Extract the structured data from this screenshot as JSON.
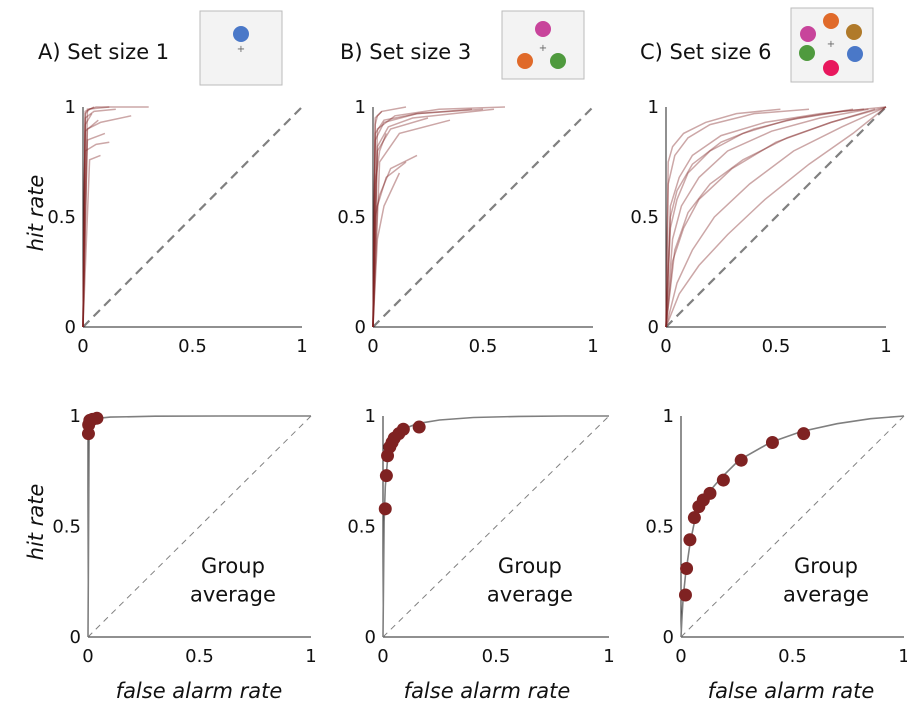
{
  "panels": [
    {
      "label": "A) Set size 1",
      "icon_stimuli": [
        {
          "color": "#4a78c8"
        }
      ]
    },
    {
      "label": "B) Set size 3",
      "icon_stimuli": [
        {
          "color": "#c8449b"
        },
        {
          "color": "#e06a2a"
        },
        {
          "color": "#4f9a3e"
        }
      ]
    },
    {
      "label": "C) Set size 6",
      "icon_stimuli": [
        {
          "color": "#e06a2a"
        },
        {
          "color": "#c8449b"
        },
        {
          "color": "#b07a2a"
        },
        {
          "color": "#4f9a3e"
        },
        {
          "color": "#4a78c8"
        },
        {
          "color": "#e8175d"
        }
      ]
    }
  ],
  "axis_labels": {
    "x": "false alarm rate",
    "y": "hit rate"
  },
  "annotation": {
    "line1": "Group",
    "line2": "average"
  },
  "colors": {
    "data": "#7f2222",
    "curve": "#7f7f7f",
    "chance": "#808080",
    "axis": "#222222"
  },
  "chart_data": [
    {
      "type": "line",
      "title": "A) Set size 1",
      "row": "individual ROC curves",
      "xlabel": "",
      "ylabel": "hit rate",
      "xlim": [
        0,
        1
      ],
      "ylim": [
        0,
        1
      ],
      "xticks": [
        "0",
        "0.5",
        "1"
      ],
      "yticks": [
        "0",
        "0.5",
        "1"
      ],
      "reference_line": "chance diagonal (dashed)",
      "series": [
        {
          "x": [
            0,
            0.01,
            0.03,
            0.06,
            0.3
          ],
          "y": [
            0,
            0.98,
            0.99,
            1.0,
            1.0
          ]
        },
        {
          "x": [
            0,
            0.01,
            0.05,
            0.15
          ],
          "y": [
            0,
            0.95,
            0.98,
            0.99
          ]
        },
        {
          "x": [
            0,
            0.02,
            0.08,
            0.22
          ],
          "y": [
            0,
            0.9,
            0.93,
            0.96
          ]
        },
        {
          "x": [
            0,
            0.01,
            0.04
          ],
          "y": [
            0,
            0.92,
            0.97
          ]
        },
        {
          "x": [
            0,
            0.02,
            0.1
          ],
          "y": [
            0,
            0.85,
            0.88
          ]
        },
        {
          "x": [
            0,
            0.01,
            0.06,
            0.12
          ],
          "y": [
            0,
            0.8,
            0.83,
            0.84
          ]
        },
        {
          "x": [
            0,
            0.03,
            0.08
          ],
          "y": [
            0,
            0.76,
            0.78
          ]
        },
        {
          "x": [
            0,
            0.01,
            0.03,
            0.05
          ],
          "y": [
            0,
            0.97,
            0.99,
            1.0
          ]
        },
        {
          "x": [
            0,
            0.02,
            0.12
          ],
          "y": [
            0,
            0.99,
            1.0
          ]
        },
        {
          "x": [
            0,
            0.01,
            0.07
          ],
          "y": [
            0,
            0.89,
            0.94
          ]
        }
      ]
    },
    {
      "type": "line",
      "title": "B) Set size 3",
      "row": "individual ROC curves",
      "xlabel": "",
      "ylabel": "",
      "xlim": [
        0,
        1
      ],
      "ylim": [
        0,
        1
      ],
      "xticks": [
        "0",
        "0.5",
        "1"
      ],
      "yticks": [
        "0",
        "0.5",
        "1"
      ],
      "reference_line": "chance diagonal (dashed)",
      "series": [
        {
          "x": [
            0,
            0.02,
            0.1,
            0.3,
            0.6
          ],
          "y": [
            0,
            0.9,
            0.96,
            0.99,
            1.0
          ]
        },
        {
          "x": [
            0,
            0.01,
            0.05,
            0.2,
            0.5
          ],
          "y": [
            0,
            0.85,
            0.93,
            0.97,
            0.99
          ]
        },
        {
          "x": [
            0,
            0.02,
            0.08,
            0.25
          ],
          "y": [
            0,
            0.8,
            0.9,
            0.95
          ]
        },
        {
          "x": [
            0,
            0.01,
            0.04,
            0.15
          ],
          "y": [
            0,
            0.95,
            0.98,
            1.0
          ]
        },
        {
          "x": [
            0,
            0.01,
            0.03,
            0.08,
            0.2
          ],
          "y": [
            0,
            0.5,
            0.6,
            0.72,
            0.78
          ]
        },
        {
          "x": [
            0,
            0.02,
            0.06,
            0.15
          ],
          "y": [
            0,
            0.55,
            0.68,
            0.75
          ]
        },
        {
          "x": [
            0,
            0.02,
            0.05,
            0.12
          ],
          "y": [
            0,
            0.4,
            0.55,
            0.7
          ]
        },
        {
          "x": [
            0,
            0.01,
            0.03,
            0.06
          ],
          "y": [
            0,
            0.65,
            0.8,
            0.88
          ]
        },
        {
          "x": [
            0,
            0.01,
            0.05,
            0.2,
            0.45
          ],
          "y": [
            0,
            0.88,
            0.94,
            0.97,
            0.99
          ]
        },
        {
          "x": [
            0,
            0.03,
            0.12,
            0.35
          ],
          "y": [
            0,
            0.75,
            0.88,
            0.94
          ]
        },
        {
          "x": [
            0,
            0.01,
            0.02,
            0.04
          ],
          "y": [
            0,
            0.92,
            0.96,
            0.98
          ]
        },
        {
          "x": [
            0,
            0.02,
            0.07,
            0.18,
            0.55
          ],
          "y": [
            0,
            0.82,
            0.91,
            0.95,
            0.99
          ]
        }
      ]
    },
    {
      "type": "line",
      "title": "C) Set size 6",
      "row": "individual ROC curves",
      "xlabel": "",
      "ylabel": "",
      "xlim": [
        0,
        1
      ],
      "ylim": [
        0,
        1
      ],
      "xticks": [
        "0",
        "0.5",
        "1"
      ],
      "yticks": [
        "0",
        "0.5",
        "1"
      ],
      "reference_line": "chance diagonal (dashed)",
      "series": [
        {
          "x": [
            0,
            0.02,
            0.05,
            0.1,
            0.2,
            0.35,
            0.55,
            0.8,
            1.0
          ],
          "y": [
            0,
            0.45,
            0.58,
            0.7,
            0.8,
            0.88,
            0.94,
            0.98,
            1.0
          ]
        },
        {
          "x": [
            0,
            0.03,
            0.08,
            0.15,
            0.3,
            0.5,
            0.75,
            1.0
          ],
          "y": [
            0,
            0.3,
            0.45,
            0.58,
            0.72,
            0.84,
            0.93,
            1.0
          ]
        },
        {
          "x": [
            0,
            0.02,
            0.06,
            0.12,
            0.25,
            0.45,
            0.7,
            0.9
          ],
          "y": [
            0,
            0.55,
            0.68,
            0.78,
            0.87,
            0.93,
            0.97,
            0.99
          ]
        },
        {
          "x": [
            0,
            0.01,
            0.04,
            0.1,
            0.2,
            0.4,
            0.65
          ],
          "y": [
            0,
            0.65,
            0.78,
            0.86,
            0.92,
            0.97,
            0.99
          ]
        },
        {
          "x": [
            0,
            0.05,
            0.12,
            0.22,
            0.38,
            0.58,
            0.8,
            1.0
          ],
          "y": [
            0,
            0.2,
            0.35,
            0.5,
            0.65,
            0.8,
            0.91,
            1.0
          ]
        },
        {
          "x": [
            0,
            0.04,
            0.1,
            0.2,
            0.35,
            0.55,
            0.75,
            0.95
          ],
          "y": [
            0,
            0.35,
            0.52,
            0.65,
            0.76,
            0.86,
            0.93,
            0.99
          ]
        },
        {
          "x": [
            0,
            0.02,
            0.05,
            0.12,
            0.25,
            0.4,
            0.6,
            0.85
          ],
          "y": [
            0,
            0.5,
            0.62,
            0.74,
            0.84,
            0.9,
            0.95,
            0.99
          ]
        },
        {
          "x": [
            0,
            0.06,
            0.15,
            0.28,
            0.45,
            0.65,
            0.85,
            1.0
          ],
          "y": [
            0,
            0.15,
            0.28,
            0.42,
            0.58,
            0.74,
            0.88,
            1.0
          ]
        },
        {
          "x": [
            0,
            0.01,
            0.03,
            0.08,
            0.18,
            0.32,
            0.52
          ],
          "y": [
            0,
            0.75,
            0.82,
            0.88,
            0.93,
            0.97,
            0.99
          ]
        },
        {
          "x": [
            0,
            0.03,
            0.07,
            0.15,
            0.28,
            0.48,
            0.7,
            0.92
          ],
          "y": [
            0,
            0.4,
            0.55,
            0.68,
            0.8,
            0.89,
            0.95,
            0.99
          ]
        }
      ]
    },
    {
      "type": "scatter",
      "title": "",
      "row": "group average",
      "xlabel": "false alarm rate",
      "ylabel": "hit rate",
      "xlim": [
        0,
        1
      ],
      "ylim": [
        0,
        1
      ],
      "xticks": [
        "0",
        "0.5",
        "1"
      ],
      "yticks": [
        "0",
        "0.5",
        "1"
      ],
      "reference_line": "chance diagonal (dashed)",
      "annotation": "Group average",
      "fitted_curve": {
        "x": [
          0,
          0.005,
          0.01,
          0.02,
          0.05,
          0.1,
          0.3,
          0.6,
          1.0
        ],
        "y": [
          0,
          0.9,
          0.95,
          0.975,
          0.99,
          0.995,
          0.999,
          1.0,
          1.0
        ]
      },
      "points": {
        "x": [
          0.002,
          0.003,
          0.008,
          0.02,
          0.04
        ],
        "y": [
          0.92,
          0.96,
          0.98,
          0.985,
          0.99
        ]
      }
    },
    {
      "type": "scatter",
      "title": "",
      "row": "group average",
      "xlabel": "false alarm rate",
      "ylabel": "",
      "xlim": [
        0,
        1
      ],
      "ylim": [
        0,
        1
      ],
      "xticks": [
        "0",
        "0.5",
        "1"
      ],
      "yticks": [
        "0",
        "0.5",
        "1"
      ],
      "reference_line": "chance diagonal (dashed)",
      "annotation": "Group average",
      "fitted_curve": {
        "x": [
          0,
          0.005,
          0.01,
          0.02,
          0.04,
          0.06,
          0.1,
          0.15,
          0.25,
          0.4,
          0.6,
          0.8,
          1.0
        ],
        "y": [
          0,
          0.52,
          0.68,
          0.8,
          0.88,
          0.915,
          0.945,
          0.965,
          0.982,
          0.993,
          0.998,
          1.0,
          1.0
        ]
      },
      "points": {
        "x": [
          0.01,
          0.015,
          0.02,
          0.03,
          0.04,
          0.05,
          0.07,
          0.09,
          0.16
        ],
        "y": [
          0.58,
          0.73,
          0.82,
          0.86,
          0.88,
          0.9,
          0.92,
          0.94,
          0.95
        ]
      }
    },
    {
      "type": "scatter",
      "title": "",
      "row": "group average",
      "xlabel": "false alarm rate",
      "ylabel": "",
      "xlim": [
        0,
        1
      ],
      "ylim": [
        0,
        1
      ],
      "xticks": [
        "0",
        "0.5",
        "1"
      ],
      "yticks": [
        "0",
        "0.5",
        "1"
      ],
      "reference_line": "chance diagonal (dashed)",
      "annotation": "Group average",
      "fitted_curve": {
        "x": [
          0,
          0.005,
          0.01,
          0.02,
          0.04,
          0.06,
          0.09,
          0.12,
          0.18,
          0.26,
          0.4,
          0.54,
          0.7,
          0.85,
          1.0
        ],
        "y": [
          0,
          0.1,
          0.18,
          0.28,
          0.42,
          0.52,
          0.6,
          0.65,
          0.72,
          0.8,
          0.88,
          0.93,
          0.965,
          0.988,
          1.0
        ]
      },
      "points": {
        "x": [
          0.02,
          0.025,
          0.04,
          0.06,
          0.08,
          0.1,
          0.13,
          0.19,
          0.27,
          0.41,
          0.55
        ],
        "y": [
          0.19,
          0.31,
          0.44,
          0.54,
          0.59,
          0.62,
          0.65,
          0.71,
          0.8,
          0.88,
          0.92
        ]
      }
    }
  ]
}
